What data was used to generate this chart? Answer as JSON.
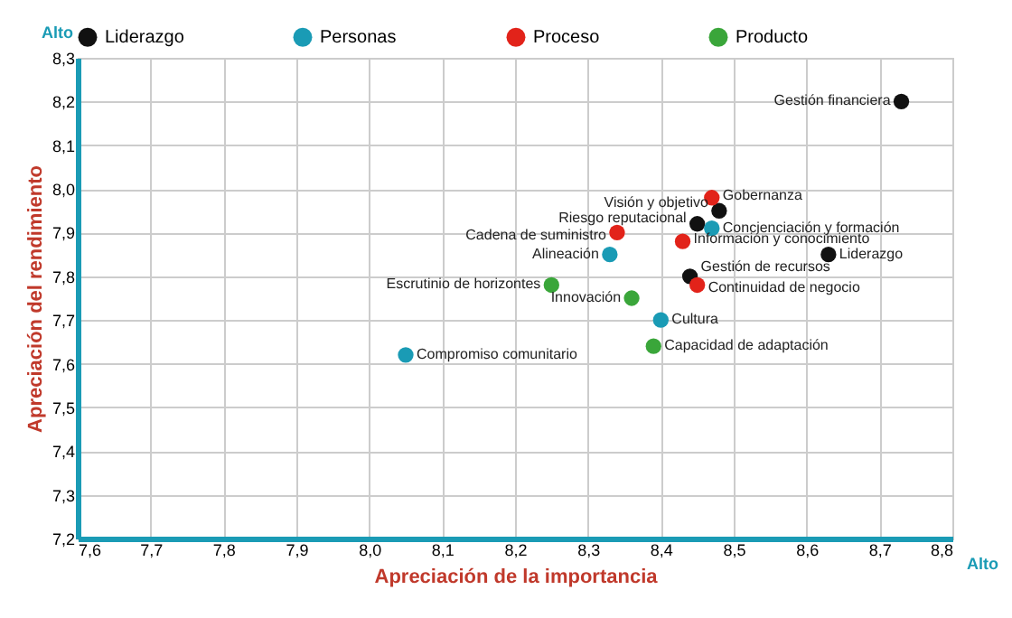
{
  "chart_data": {
    "type": "scatter",
    "xlabel": "Apreciación de la importancia",
    "ylabel": "Apreciación del rendimiento",
    "xlim": [
      7.6,
      8.8
    ],
    "ylim": [
      7.2,
      8.3
    ],
    "xticks": [
      {
        "value": 7.6,
        "label": "7,6"
      },
      {
        "value": 7.7,
        "label": "7,7"
      },
      {
        "value": 7.8,
        "label": "7,8"
      },
      {
        "value": 7.9,
        "label": "7,9"
      },
      {
        "value": 8.0,
        "label": "8,0"
      },
      {
        "value": 8.1,
        "label": "8,1"
      },
      {
        "value": 8.2,
        "label": "8,2"
      },
      {
        "value": 8.3,
        "label": "8,3"
      },
      {
        "value": 8.4,
        "label": "8,4"
      },
      {
        "value": 8.5,
        "label": "8,5"
      },
      {
        "value": 8.6,
        "label": "8,6"
      },
      {
        "value": 8.7,
        "label": "8,7"
      },
      {
        "value": 8.8,
        "label": "8,8"
      }
    ],
    "yticks": [
      {
        "value": 7.2,
        "label": "7,2"
      },
      {
        "value": 7.3,
        "label": "7,3"
      },
      {
        "value": 7.4,
        "label": "7,4"
      },
      {
        "value": 7.5,
        "label": "7,5"
      },
      {
        "value": 7.6,
        "label": "7,6"
      },
      {
        "value": 7.7,
        "label": "7,7"
      },
      {
        "value": 7.8,
        "label": "7,8"
      },
      {
        "value": 7.9,
        "label": "7,9"
      },
      {
        "value": 8.0,
        "label": "8,0"
      },
      {
        "value": 8.1,
        "label": "8,1"
      },
      {
        "value": 8.2,
        "label": "8,2"
      },
      {
        "value": 8.3,
        "label": "8,3"
      }
    ],
    "grid": true,
    "legend": "top",
    "marker": "circle",
    "series": [
      {
        "name": "Liderazgo",
        "color": "#111111",
        "x": [
          8.73,
          8.48,
          8.45,
          8.63,
          8.44
        ],
        "values": [
          8.2,
          7.95,
          7.92,
          7.85,
          7.8
        ]
      },
      {
        "name": "Personas",
        "color": "#1a9bb5",
        "x": [
          8.47,
          8.33,
          8.4,
          8.05
        ],
        "values": [
          7.91,
          7.85,
          7.7,
          7.62
        ]
      },
      {
        "name": "Proceso",
        "color": "#e2231a",
        "x": [
          8.47,
          8.34,
          8.43,
          8.45
        ],
        "values": [
          7.98,
          7.9,
          7.88,
          7.78
        ]
      },
      {
        "name": "Producto",
        "color": "#3aa63a",
        "x": [
          8.25,
          8.36,
          8.39
        ],
        "values": [
          7.78,
          7.75,
          7.64
        ]
      }
    ],
    "annotations": [
      "Alto",
      "Alto",
      {
        "text": "Gestión financiera",
        "x": 8.73,
        "y": 8.2
      },
      {
        "text": "Visión y objetivo",
        "x": 8.48,
        "y": 7.95
      },
      {
        "text": "Riesgo reputacional",
        "x": 8.45,
        "y": 7.92
      },
      {
        "text": "Liderazgo",
        "x": 8.63,
        "y": 7.85
      },
      {
        "text": "Gestión de recursos",
        "x": 8.44,
        "y": 7.8
      },
      {
        "text": "Concienciación y formación",
        "x": 8.47,
        "y": 7.91
      },
      {
        "text": "Alineación",
        "x": 8.33,
        "y": 7.85
      },
      {
        "text": "Cultura",
        "x": 8.4,
        "y": 7.7
      },
      {
        "text": "Compromiso comunitario",
        "x": 8.05,
        "y": 7.62
      },
      {
        "text": "Gobernanza",
        "x": 8.47,
        "y": 7.98
      },
      {
        "text": "Cadena de suministro",
        "x": 8.34,
        "y": 7.9
      },
      {
        "text": "Información y conocimiento",
        "x": 8.43,
        "y": 7.88
      },
      {
        "text": "Continuidad de negocio",
        "x": 8.45,
        "y": 7.78
      },
      {
        "text": "Escrutinio de horizontes",
        "x": 8.25,
        "y": 7.78
      },
      {
        "text": "Innovación",
        "x": 8.36,
        "y": 7.75
      },
      {
        "text": "Capacidad de adaptación",
        "x": 8.39,
        "y": 7.64
      }
    ]
  }
}
